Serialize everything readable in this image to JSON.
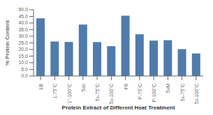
{
  "chart_data": {
    "type": "bar",
    "categories": [
      "LB",
      "1.75°C",
      "1°-100°C",
      "5xb",
      "5x-75°C",
      "5x-100°C",
      "P8",
      "P-75°C",
      "P-100°C",
      "5xM",
      "5x-75°C",
      "5x-100°C"
    ],
    "values": [
      43.5,
      26.0,
      25.7,
      38.8,
      25.6,
      22.5,
      45.5,
      31.5,
      26.7,
      27.0,
      20.3,
      17.0
    ],
    "color": "#4f7cac",
    "ylabel": "% Protein Content",
    "xlabel": "Protein Extract of Different Heat Treatment",
    "ylim": [
      0,
      50
    ],
    "yticks": [
      {
        "value": 0,
        "label": "0.0"
      },
      {
        "value": 5,
        "label": "5.0"
      },
      {
        "value": 10,
        "label": "10.0"
      },
      {
        "value": 15,
        "label": "15.0"
      },
      {
        "value": 20,
        "label": "20.0"
      },
      {
        "value": 25,
        "label": "25.0"
      },
      {
        "value": 30,
        "label": "30.0"
      },
      {
        "value": 35,
        "label": "35.0"
      },
      {
        "value": 40,
        "label": "40.0"
      },
      {
        "value": 45,
        "label": "45.0"
      },
      {
        "value": 50,
        "label": "50.0"
      }
    ],
    "grid": false
  }
}
